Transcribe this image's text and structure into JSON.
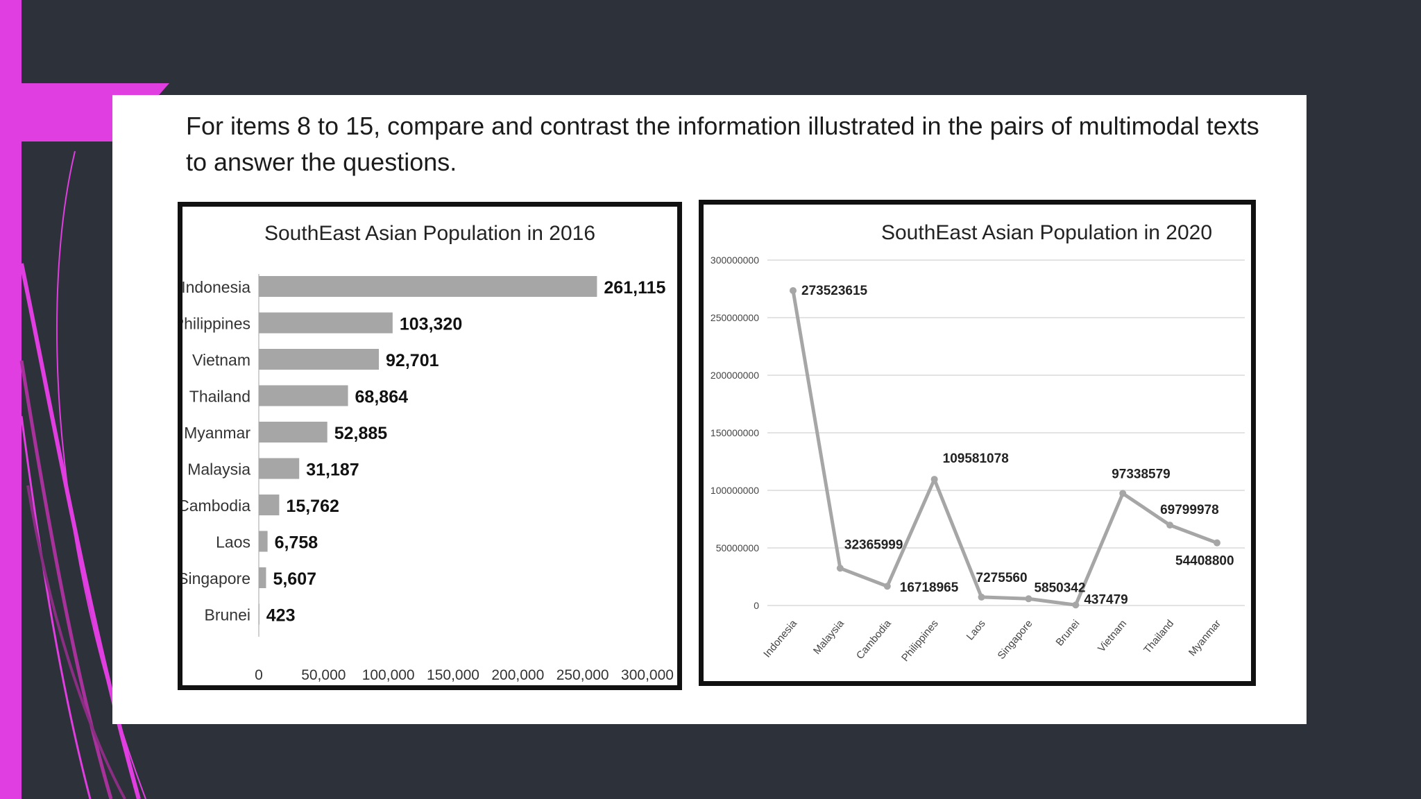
{
  "instruction": "For items 8 to 15, compare and contrast the information illustrated in the pairs of multimodal texts to answer the questions.",
  "colors": {
    "accent": "#e03ee0",
    "background": "#2d3139",
    "bar": "#a6a6a6",
    "line": "#a6a6a6"
  },
  "chart_data": [
    {
      "type": "bar",
      "orientation": "horizontal",
      "title": "SouthEast Asian Population in 2016",
      "categories": [
        "Indonesia",
        "Philippines",
        "Vietnam",
        "Thailand",
        "Myanmar",
        "Malaysia",
        "Cambodia",
        "Laos",
        "Singapore",
        "Brunei"
      ],
      "values": [
        261115,
        103320,
        92701,
        68864,
        52885,
        31187,
        15762,
        6758,
        5607,
        423
      ],
      "value_labels": [
        "261,115",
        "103,320",
        "92,701",
        "68,864",
        "52,885",
        "31,187",
        "15,762",
        "6,758",
        "5,607",
        "423"
      ],
      "xlim": [
        0,
        300000
      ],
      "x_ticks": [
        "0",
        "50,000",
        "100,000",
        "150,000",
        "200,000",
        "250,000",
        "300,000"
      ],
      "grid": false
    },
    {
      "type": "line",
      "title": "SouthEast Asian Population in 2020",
      "categories": [
        "Indonesia",
        "Malaysia",
        "Cambodia",
        "Philippines",
        "Laos",
        "Singapore",
        "Brunei",
        "Vietnam",
        "Thailand",
        "Myanmar"
      ],
      "values": [
        273523615,
        32365999,
        16718965,
        109581078,
        7275560,
        5850342,
        437479,
        97338579,
        69799978,
        54408800
      ],
      "value_labels": [
        "273523615",
        "32365999",
        "16718965",
        "109581078",
        "7275560",
        "5850342",
        "437479",
        "97338579",
        "69799978",
        "54408800"
      ],
      "ylim": [
        0,
        300000000
      ],
      "y_ticks": [
        "0",
        "50000000",
        "100000000",
        "150000000",
        "200000000",
        "250000000",
        "300000000"
      ],
      "grid": true
    }
  ]
}
